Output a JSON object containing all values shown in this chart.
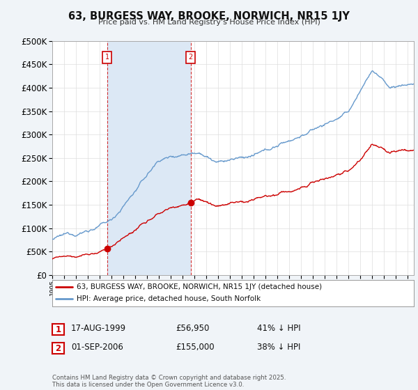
{
  "title": "63, BURGESS WAY, BROOKE, NORWICH, NR15 1JY",
  "subtitle": "Price paid vs. HM Land Registry's House Price Index (HPI)",
  "bg_color": "#f0f4f8",
  "plot_bg_color": "#ffffff",
  "red_line_label": "63, BURGESS WAY, BROOKE, NORWICH, NR15 1JY (detached house)",
  "blue_line_label": "HPI: Average price, detached house, South Norfolk",
  "marker1_date": "17-AUG-1999",
  "marker1_price": "£56,950",
  "marker1_pct": "41% ↓ HPI",
  "marker2_date": "01-SEP-2006",
  "marker2_price": "£155,000",
  "marker2_pct": "38% ↓ HPI",
  "footer": "Contains HM Land Registry data © Crown copyright and database right 2025.\nThis data is licensed under the Open Government Licence v3.0.",
  "xmin": 1995.0,
  "xmax": 2025.5,
  "ymin": 0,
  "ymax": 500000,
  "marker1_x": 1999.63,
  "marker2_x": 2006.67,
  "marker1_y_red": 56950,
  "marker2_y_red": 155000,
  "red_color": "#cc0000",
  "blue_color": "#6699cc",
  "shade_color": "#dce8f5",
  "marker_box_color": "#cc0000",
  "dashed_color": "#cc0000",
  "grid_color": "#dddddd"
}
